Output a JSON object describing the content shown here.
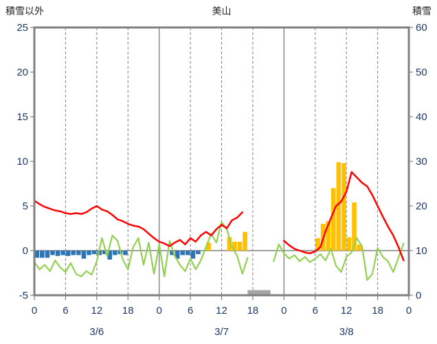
{
  "header": {
    "left_axis_title": "積雪以外",
    "station_title": "美山",
    "right_axis_title": "積雪"
  },
  "chart_data": {
    "type": "composite",
    "title": "美山",
    "x_axis": {
      "total_hours": 72,
      "tick_step_hours": 6,
      "hour_tick_labels": [
        "0",
        "6",
        "12",
        "18",
        "0",
        "6",
        "12",
        "18",
        "0",
        "6",
        "12",
        "18",
        "0"
      ],
      "day_labels": [
        "3/6",
        "3/7",
        "3/8"
      ],
      "day_label_center_hours": [
        12,
        36,
        60
      ],
      "day_boundary_hours": [
        24,
        48
      ]
    },
    "left_axis": {
      "title": "積雪以外",
      "min": -5,
      "max": 25,
      "ticks": [
        25,
        20,
        15,
        10,
        5,
        0,
        -5
      ]
    },
    "right_axis": {
      "title": "積雪",
      "min": 0,
      "max": 60,
      "ticks": [
        60,
        50,
        40,
        30,
        20,
        10,
        0
      ]
    },
    "grid": {
      "zero_line_value": 0,
      "horizontal_gridlines": false
    },
    "colors": {
      "frame": "#808080",
      "grid": "#808080",
      "tick_label": "#1f3864",
      "temperature_line": "#ff0000",
      "green_line": "#92d050",
      "blue_bars": "#2e74b5",
      "orange_bars": "#ffc000",
      "snow_depth_line": "#7030a0",
      "missing_block": "#a6a6a6"
    },
    "series": {
      "temperature_line": {
        "type": "line",
        "axis": "left",
        "color": "#ff0000",
        "width": 2.5,
        "segments": [
          [
            [
              0,
              5.6
            ],
            [
              1,
              5.2
            ],
            [
              2,
              4.9
            ],
            [
              3,
              4.7
            ],
            [
              4,
              4.5
            ],
            [
              5,
              4.4
            ],
            [
              6,
              4.2
            ],
            [
              7,
              4.1
            ],
            [
              8,
              4.2
            ],
            [
              9,
              4.1
            ],
            [
              10,
              4.3
            ],
            [
              11,
              4.7
            ],
            [
              12,
              5.0
            ],
            [
              13,
              4.6
            ],
            [
              14,
              4.4
            ],
            [
              15,
              4.0
            ],
            [
              16,
              3.5
            ],
            [
              17,
              3.3
            ],
            [
              18,
              3.0
            ],
            [
              19,
              2.8
            ],
            [
              20,
              2.7
            ],
            [
              21,
              2.4
            ],
            [
              22,
              1.9
            ],
            [
              23,
              1.4
            ],
            [
              24,
              1.0
            ],
            [
              25,
              0.8
            ],
            [
              26,
              0.5
            ],
            [
              27,
              0.9
            ],
            [
              28,
              1.2
            ],
            [
              29,
              0.7
            ],
            [
              30,
              1.4
            ],
            [
              31,
              1.0
            ],
            [
              32,
              1.7
            ],
            [
              33,
              2.1
            ],
            [
              34,
              1.7
            ],
            [
              35,
              2.4
            ],
            [
              36,
              2.9
            ],
            [
              37,
              2.5
            ],
            [
              38,
              3.4
            ],
            [
              39,
              3.7
            ],
            [
              40,
              4.3
            ]
          ],
          [
            [
              48,
              1.1
            ],
            [
              49,
              0.6
            ],
            [
              50,
              0.2
            ],
            [
              51,
              0.0
            ],
            [
              52,
              -0.2
            ],
            [
              53,
              -0.3
            ],
            [
              54,
              -0.1
            ],
            [
              55,
              0.4
            ],
            [
              56,
              2.2
            ],
            [
              57,
              3.6
            ],
            [
              58,
              5.0
            ],
            [
              59,
              5.5
            ],
            [
              60,
              6.6
            ],
            [
              61,
              8.8
            ],
            [
              62,
              8.2
            ],
            [
              63,
              7.6
            ],
            [
              64,
              7.2
            ],
            [
              65,
              6.2
            ],
            [
              66,
              5.0
            ],
            [
              67,
              3.8
            ],
            [
              68,
              2.7
            ],
            [
              69,
              1.7
            ],
            [
              70,
              0.4
            ],
            [
              71,
              -1.1
            ]
          ]
        ]
      },
      "green_line": {
        "type": "line",
        "axis": "left",
        "color": "#92d050",
        "width": 2.2,
        "segments": [
          [
            [
              0,
              -1.3
            ],
            [
              1,
              -2.1
            ],
            [
              2,
              -1.6
            ],
            [
              3,
              -2.3
            ],
            [
              4,
              -1.1
            ],
            [
              5,
              -1.9
            ],
            [
              6,
              -2.4
            ],
            [
              7,
              -1.4
            ],
            [
              8,
              -2.6
            ],
            [
              9,
              -2.9
            ],
            [
              10,
              -2.3
            ],
            [
              11,
              -2.7
            ],
            [
              12,
              -1.2
            ],
            [
              13,
              1.4
            ],
            [
              14,
              -0.6
            ],
            [
              15,
              1.7
            ],
            [
              16,
              1.1
            ],
            [
              17,
              -1.0
            ],
            [
              18,
              -2.1
            ],
            [
              19,
              0.4
            ],
            [
              20,
              1.4
            ],
            [
              21,
              -1.6
            ],
            [
              22,
              0.9
            ],
            [
              23,
              -2.6
            ],
            [
              24,
              0.7
            ],
            [
              25,
              -2.9
            ],
            [
              26,
              1.1
            ],
            [
              27,
              -0.6
            ],
            [
              28,
              -1.6
            ],
            [
              29,
              -2.3
            ],
            [
              30,
              -0.9
            ],
            [
              31,
              -2.1
            ],
            [
              32,
              -1.1
            ],
            [
              33,
              0.4
            ],
            [
              34,
              1.9
            ],
            [
              35,
              0.9
            ],
            [
              36,
              3.2
            ],
            [
              37,
              2.4
            ],
            [
              38,
              0.4
            ],
            [
              39,
              -0.6
            ],
            [
              40,
              -2.6
            ],
            [
              41,
              -0.8
            ]
          ],
          [
            [
              46,
              -1.2
            ],
            [
              47,
              0.7
            ],
            [
              48,
              -0.3
            ],
            [
              49,
              -0.9
            ],
            [
              50,
              -0.5
            ],
            [
              51,
              -1.2
            ],
            [
              52,
              -0.7
            ],
            [
              53,
              -1.3
            ],
            [
              54,
              -0.9
            ],
            [
              55,
              -0.4
            ],
            [
              56,
              -1.1
            ],
            [
              57,
              0.2
            ],
            [
              58,
              -1.7
            ],
            [
              59,
              -2.4
            ],
            [
              60,
              -0.7
            ],
            [
              61,
              -0.2
            ],
            [
              62,
              1.4
            ],
            [
              63,
              0.5
            ],
            [
              64,
              -3.3
            ],
            [
              65,
              -2.6
            ],
            [
              66,
              0.3
            ],
            [
              67,
              -0.7
            ],
            [
              68,
              -1.2
            ],
            [
              69,
              -2.4
            ],
            [
              70,
              -0.8
            ],
            [
              71,
              0.8
            ]
          ]
        ]
      },
      "blue_bars": {
        "type": "bar",
        "axis": "left",
        "color": "#2e74b5",
        "points": [
          [
            0,
            -0.8
          ],
          [
            1,
            -0.8
          ],
          [
            2,
            -0.8
          ],
          [
            3,
            -0.5
          ],
          [
            4,
            -0.6
          ],
          [
            5,
            -0.5
          ],
          [
            6,
            -0.6
          ],
          [
            7,
            -0.5
          ],
          [
            8,
            -0.5
          ],
          [
            9,
            -0.9
          ],
          [
            10,
            -0.5
          ],
          [
            11,
            -0.4
          ],
          [
            12,
            -0.5
          ],
          [
            13,
            -0.4
          ],
          [
            14,
            -1.0
          ],
          [
            15,
            -0.5
          ],
          [
            16,
            -0.4
          ],
          [
            17,
            -0.5
          ],
          [
            26,
            -0.5
          ],
          [
            27,
            -0.9
          ],
          [
            28,
            -0.5
          ],
          [
            29,
            -0.5
          ],
          [
            30,
            -0.9
          ],
          [
            31,
            -0.4
          ]
        ]
      },
      "orange_bars": {
        "type": "bar",
        "axis": "left",
        "color": "#ffc000",
        "points": [
          [
            33,
            0.9
          ],
          [
            37,
            1.5
          ],
          [
            38,
            1.0
          ],
          [
            39,
            1.0
          ],
          [
            40,
            2.1
          ],
          [
            54,
            1.4
          ],
          [
            55,
            3.0
          ],
          [
            56,
            3.3
          ],
          [
            57,
            7.0
          ],
          [
            58,
            9.9
          ],
          [
            59,
            9.8
          ],
          [
            60,
            1.5
          ],
          [
            61,
            5.4
          ],
          [
            62,
            0.7
          ]
        ]
      },
      "snow_depth_line": {
        "type": "line",
        "axis": "right",
        "color": "#7030a0",
        "width": 2.5,
        "segments": [
          [
            [
              0,
              0
            ],
            [
              72,
              0
            ]
          ]
        ]
      },
      "missing_data_block": {
        "type": "block",
        "color": "#a6a6a6",
        "from_hour": 41,
        "to_hour": 45.4
      }
    }
  }
}
